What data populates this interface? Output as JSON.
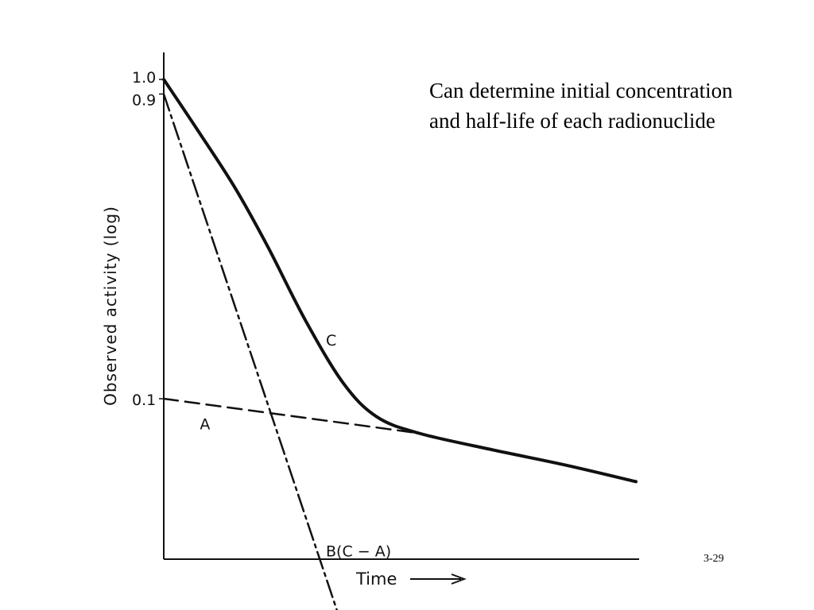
{
  "callout_text": "Can determine initial concentration and half-life of each radionuclide",
  "slide_number": "3-29",
  "chart_data": {
    "type": "line",
    "xlabel": "Time",
    "x_arrow": true,
    "ylabel": "Observed activity (log)",
    "y_scale": "log",
    "yticks": [
      {
        "value": 1.0,
        "label": "1.0"
      },
      {
        "value": 0.9,
        "label": "0.9"
      },
      {
        "value": 0.1,
        "label": "0.1"
      }
    ],
    "ylim": [
      0.016,
      1.15
    ],
    "xlim": [
      0,
      10
    ],
    "grid": false,
    "series": [
      {
        "name": "C",
        "label": "C",
        "style": "solid",
        "points": [
          [
            0,
            1.0
          ],
          [
            0.7,
            0.7
          ],
          [
            1.5,
            0.46
          ],
          [
            2.2,
            0.3
          ],
          [
            3.0,
            0.176
          ],
          [
            3.8,
            0.112
          ],
          [
            4.5,
            0.088
          ],
          [
            5.4,
            0.078
          ],
          [
            7.0,
            0.069
          ],
          [
            8.5,
            0.062
          ],
          [
            10.0,
            0.055
          ]
        ]
      },
      {
        "name": "A",
        "label": "A",
        "style": "dashed",
        "points": [
          [
            0,
            0.1
          ],
          [
            5.4,
            0.078
          ]
        ]
      },
      {
        "name": "B (C - A)",
        "label": "B(C − A)",
        "style": "dash-dot",
        "points": [
          [
            0,
            0.9
          ],
          [
            3.75,
            0.02
          ]
        ]
      }
    ]
  }
}
